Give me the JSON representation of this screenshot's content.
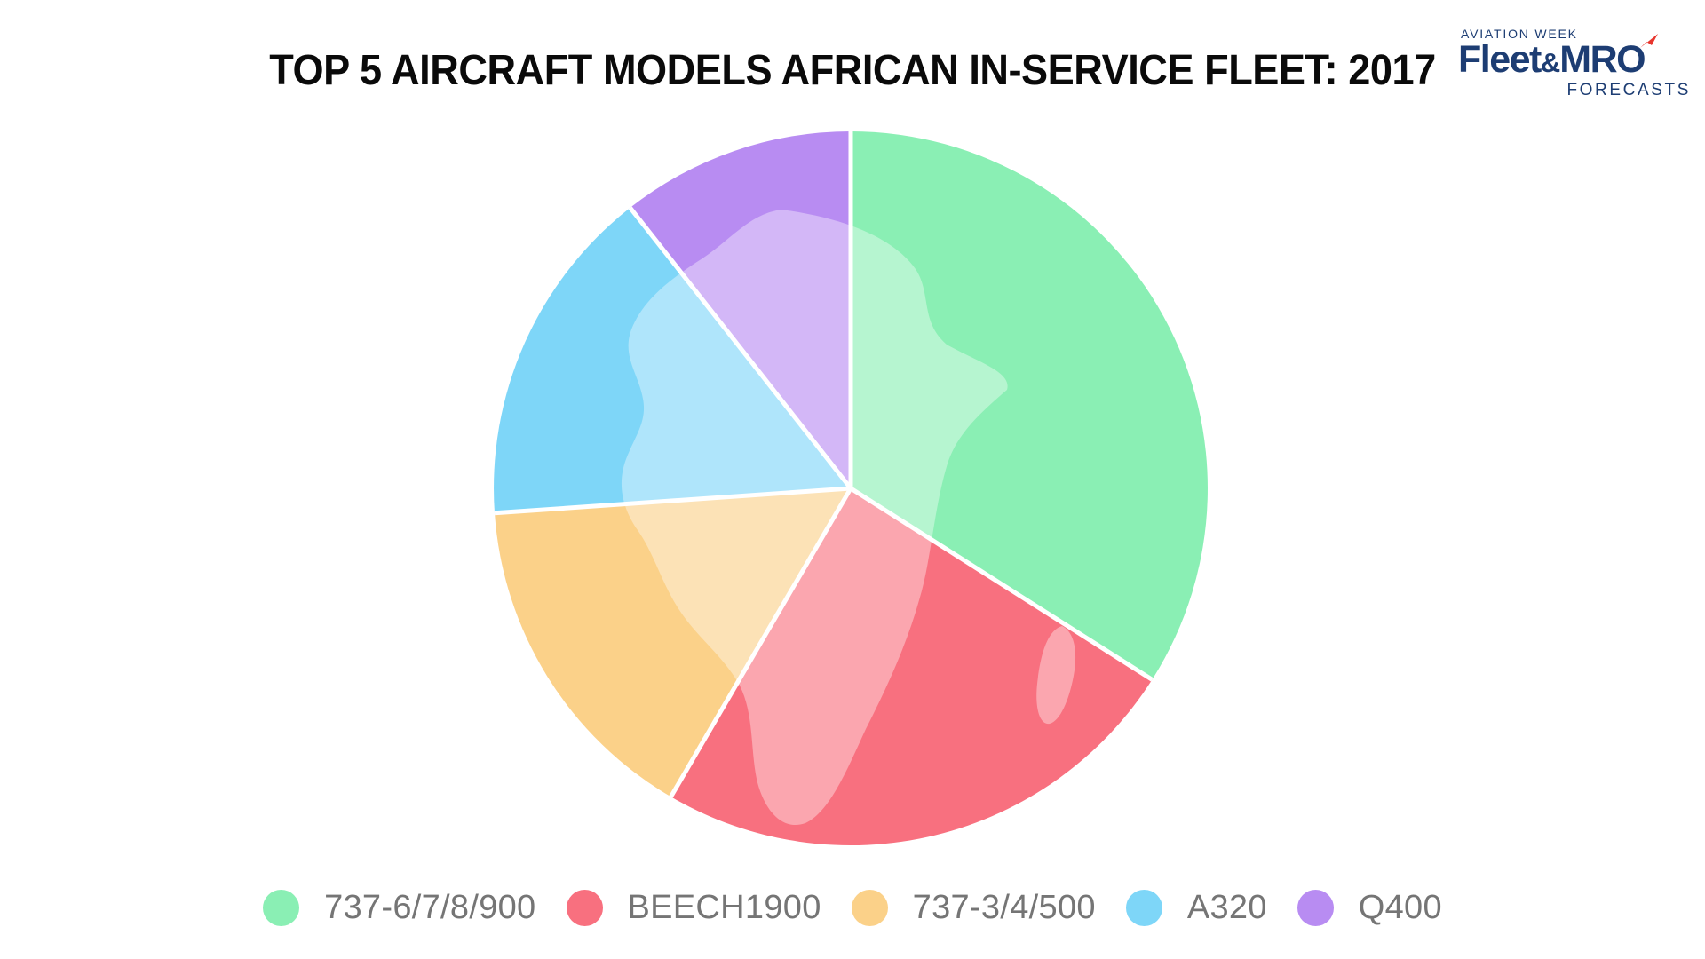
{
  "title": "TOP 5 AIRCRAFT MODELS AFRICAN IN-SERVICE FLEET: 2017",
  "logo": {
    "top_line": "AVIATION WEEK",
    "brand_fleet": "Fleet",
    "brand_amp": "&",
    "brand_mro": "MRO",
    "bottom_line": "FORECASTS",
    "navy": "#1d3d73",
    "red": "#e8362e"
  },
  "chart_data": {
    "type": "pie",
    "title": "TOP 5 AIRCRAFT MODELS AFRICAN IN-SERVICE FLEET: 2017",
    "start_angle_deg": 0,
    "direction": "clockwise",
    "legend_position": "bottom",
    "values_are_percent_estimates_from_angles": true,
    "slices": [
      {
        "label": "737-6/7/8/900",
        "value": 34.0,
        "angle_deg": 122.4,
        "color": "#8aefb4"
      },
      {
        "label": "BEECH1900",
        "value": 24.4,
        "angle_deg": 87.8,
        "color": "#f8707f"
      },
      {
        "label": "737-3/4/500",
        "value": 15.5,
        "angle_deg": 55.8,
        "color": "#fbd189"
      },
      {
        "label": "A320",
        "value": 15.5,
        "angle_deg": 55.8,
        "color": "#7ed6f8"
      },
      {
        "label": "Q400",
        "value": 10.6,
        "angle_deg": 38.2,
        "color": "#b88cf2"
      }
    ],
    "watermark": "africa-map-silhouette"
  },
  "colors": {
    "background": "#ffffff",
    "title_text": "#0a0a0a",
    "legend_text": "#757575",
    "slice_separator": "#ffffff",
    "watermark_overlay": "rgba(255,255,255,0.38)"
  }
}
